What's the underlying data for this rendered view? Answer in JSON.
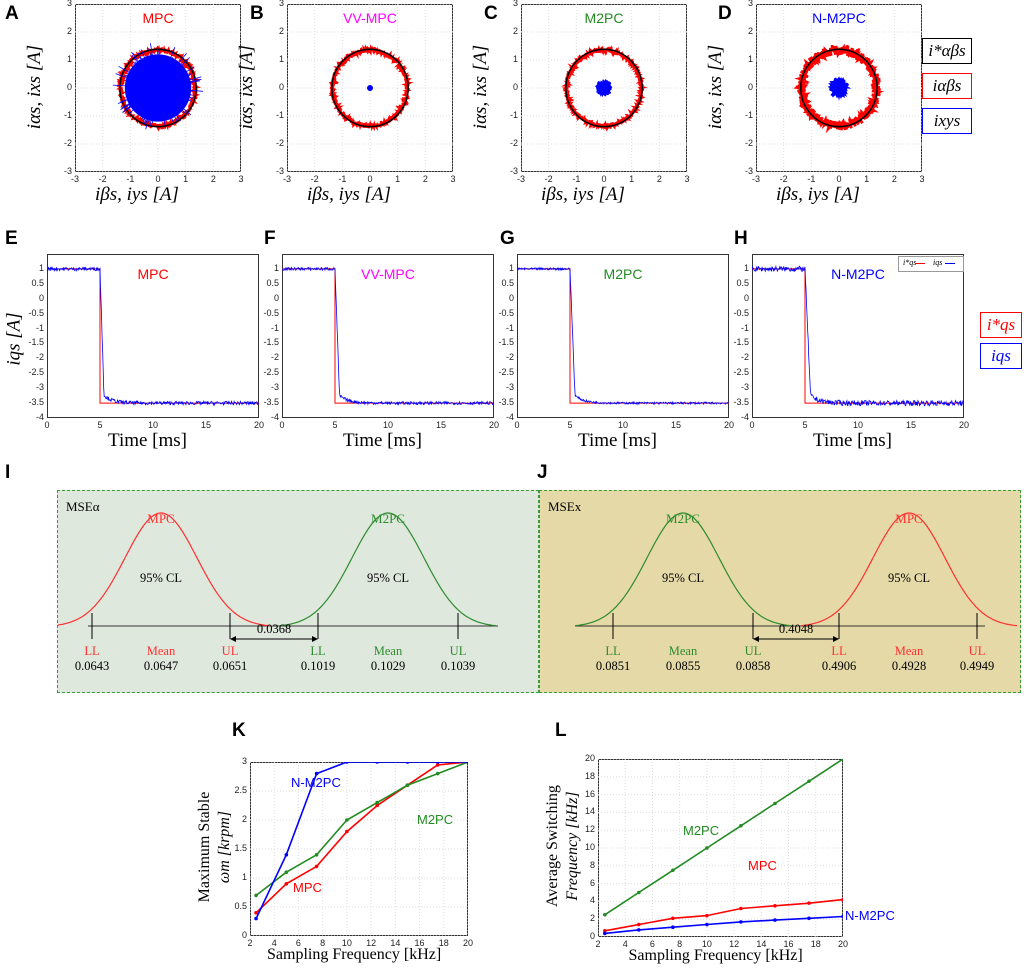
{
  "colors": {
    "red": "#ff0000",
    "blue": "#0000ff",
    "green": "#228b22",
    "magenta": "#ff00ff",
    "black": "#000000",
    "panel_I_bg": "#dfe8dd",
    "panel_J_bg": "#e5d9a7"
  },
  "letters": {
    "A": "A",
    "B": "B",
    "C": "C",
    "D": "D",
    "E": "E",
    "F": "F",
    "G": "G",
    "H": "H",
    "I": "I",
    "J": "J",
    "K": "K",
    "L": "L"
  },
  "row1": {
    "ylabel": "iαs, ixs [A]",
    "xlabel": "iβs, iys [A]",
    "ticks": [
      "-3",
      "-2",
      "-1",
      "0",
      "1",
      "2",
      "3"
    ],
    "panels": [
      {
        "title": "MPC",
        "inner": "large-disc"
      },
      {
        "title": "VV-MPC",
        "inner": "dot"
      },
      {
        "title": "M2PC",
        "inner": "small-blob"
      },
      {
        "title": "N-M2PC",
        "inner": "medium-blob"
      }
    ],
    "legend": [
      "i*αβs",
      "iαβs",
      "ixys"
    ]
  },
  "row2": {
    "ylabel": "iqs [A]",
    "xlabel": "Time [ms]",
    "xticks": [
      "0",
      "5",
      "10",
      "15",
      "20"
    ],
    "yticks": [
      "1",
      "0.5",
      "0",
      "-0.5",
      "-1",
      "-1.5",
      "-2",
      "-2.5",
      "-3",
      "-3.5",
      "-4"
    ],
    "panels": [
      {
        "title": "MPC"
      },
      {
        "title": "VV-MPC"
      },
      {
        "title": "M2PC"
      },
      {
        "title": "N-M2PC"
      }
    ],
    "inset_legend": {
      "ref": "i*qs",
      "meas": "iqs"
    },
    "legend": [
      "i*qs",
      "iqs"
    ]
  },
  "ci": {
    "I": {
      "label": "MSEα",
      "dist1": {
        "name": "MPC",
        "cl": "95% CL",
        "ll_label": "LL",
        "mean_label": "Mean",
        "ul_label": "UL",
        "ll": "0.0643",
        "mean": "0.0647",
        "ul": "0.0651"
      },
      "gap": "0.0368",
      "dist2": {
        "name": "M2PC",
        "cl": "95% CL",
        "ll_label": "LL",
        "mean_label": "Mean",
        "ul_label": "UL",
        "ll": "0.1019",
        "mean": "0.1029",
        "ul": "0.1039"
      }
    },
    "J": {
      "label": "MSEx",
      "dist1": {
        "name": "M2PC",
        "cl": "95% CL",
        "ll_label": "LL",
        "mean_label": "Mean",
        "ul_label": "UL",
        "ll": "0.0851",
        "mean": "0.0855",
        "ul": "0.0858"
      },
      "gap": "0.4048",
      "dist2": {
        "name": "MPC",
        "cl": "95% CL",
        "ll_label": "LL",
        "mean_label": "Mean",
        "ul_label": "UL",
        "ll": "0.4906",
        "mean": "0.4928",
        "ul": "0.4949"
      }
    }
  },
  "chart_data": [
    {
      "type": "line",
      "id": "K",
      "title": "",
      "xlabel": "Sampling Frequency [kHz]",
      "ylabel_line1": "Maximum Stable",
      "ylabel_line2": "ωm [krpm]",
      "xlim": [
        2,
        20
      ],
      "ylim": [
        0,
        3
      ],
      "xticks": [
        2,
        4,
        6,
        8,
        10,
        12,
        14,
        16,
        18,
        20
      ],
      "yticks": [
        0,
        0.5,
        1,
        1.5,
        2,
        2.5,
        3
      ],
      "series": [
        {
          "name": "MPC",
          "color": "#ff0000",
          "x": [
            2.5,
            5,
            7.5,
            10,
            12.5,
            15,
            17.5,
            20
          ],
          "y": [
            0.4,
            0.9,
            1.2,
            1.8,
            2.25,
            2.6,
            2.95,
            3.0
          ]
        },
        {
          "name": "M2PC",
          "color": "#228b22",
          "x": [
            2.5,
            5,
            7.5,
            10,
            12.5,
            15,
            17.5,
            20
          ],
          "y": [
            0.7,
            1.1,
            1.4,
            2.0,
            2.3,
            2.6,
            2.8,
            3.0
          ]
        },
        {
          "name": "N-M2PC",
          "color": "#0000ff",
          "x": [
            2.5,
            5,
            7.5,
            10,
            12.5,
            15,
            17.5,
            20
          ],
          "y": [
            0.3,
            1.4,
            2.8,
            3.0,
            3.0,
            3.0,
            3.0,
            3.0
          ]
        }
      ],
      "labels": [
        {
          "text": "N-M2PC",
          "series": "N-M2PC"
        },
        {
          "text": "M2PC",
          "series": "M2PC"
        },
        {
          "text": "MPC",
          "series": "MPC"
        }
      ]
    },
    {
      "type": "line",
      "id": "L",
      "title": "",
      "xlabel": "Sampling Frequency [kHz]",
      "ylabel_line1": "Average Switching",
      "ylabel_line2": "Frequency [kHz]",
      "xlim": [
        2,
        20
      ],
      "ylim": [
        0,
        20
      ],
      "xticks": [
        2,
        4,
        6,
        8,
        10,
        12,
        14,
        16,
        18,
        20
      ],
      "yticks": [
        0,
        2,
        4,
        6,
        8,
        10,
        12,
        14,
        16,
        18,
        20
      ],
      "series": [
        {
          "name": "M2PC",
          "color": "#228b22",
          "x": [
            2.5,
            5,
            7.5,
            10,
            12.5,
            15,
            17.5,
            20
          ],
          "y": [
            2.5,
            5,
            7.5,
            10,
            12.5,
            15,
            17.5,
            20
          ]
        },
        {
          "name": "MPC",
          "color": "#ff0000",
          "x": [
            2.5,
            5,
            7.5,
            10,
            12.5,
            15,
            17.5,
            20
          ],
          "y": [
            0.7,
            1.4,
            2.1,
            2.4,
            3.2,
            3.5,
            3.8,
            4.2
          ]
        },
        {
          "name": "N-M2PC",
          "color": "#0000ff",
          "x": [
            2.5,
            5,
            7.5,
            10,
            12.5,
            15,
            17.5,
            20
          ],
          "y": [
            0.4,
            0.8,
            1.1,
            1.4,
            1.7,
            1.9,
            2.1,
            2.3
          ]
        }
      ],
      "labels": [
        {
          "text": "M2PC",
          "series": "M2PC"
        },
        {
          "text": "MPC",
          "series": "MPC"
        },
        {
          "text": "N-M2PC",
          "series": "N-M2PC"
        }
      ]
    }
  ]
}
